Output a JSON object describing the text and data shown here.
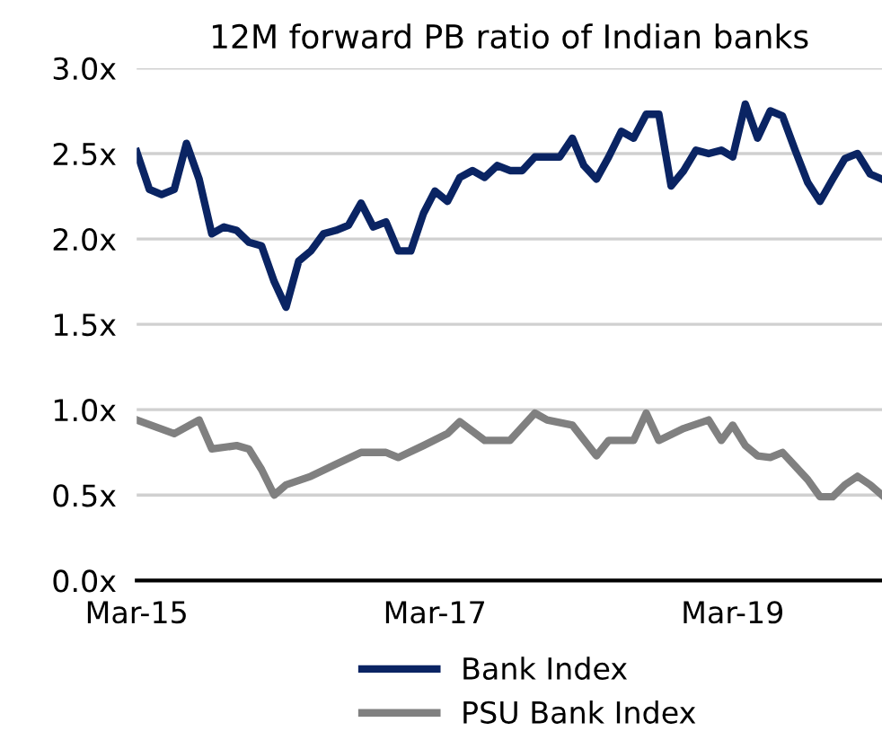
{
  "chart_data": {
    "type": "line",
    "title": "12M forward PB ratio of Indian banks",
    "series": [
      {
        "name": "Bank Index",
        "color": "#0a2463",
        "x": [
          "2015-03",
          "2015-04",
          "2015-05",
          "2015-06",
          "2015-07",
          "2015-08",
          "2015-09",
          "2015-10",
          "2015-11",
          "2015-12",
          "2016-01",
          "2016-02",
          "2016-03",
          "2016-04",
          "2016-05",
          "2016-06",
          "2016-07",
          "2016-08",
          "2016-09",
          "2016-10",
          "2016-11",
          "2016-12",
          "2017-01",
          "2017-02",
          "2017-03",
          "2017-04",
          "2017-05",
          "2017-06",
          "2017-07",
          "2017-08",
          "2017-09",
          "2017-10",
          "2017-11",
          "2017-12",
          "2018-01",
          "2018-02",
          "2018-03",
          "2018-04",
          "2018-05",
          "2018-06",
          "2018-07",
          "2018-08",
          "2018-09",
          "2018-10",
          "2018-11",
          "2018-12",
          "2019-01",
          "2019-02",
          "2019-03",
          "2019-04",
          "2019-05",
          "2019-06",
          "2019-07",
          "2019-08",
          "2019-09",
          "2019-10",
          "2019-11",
          "2019-12",
          "2020-01",
          "2020-02",
          "2020-03"
        ],
        "values": [
          2.51,
          2.29,
          2.26,
          2.29,
          2.56,
          2.35,
          2.03,
          2.07,
          2.05,
          1.98,
          1.96,
          1.75,
          1.6,
          1.87,
          1.93,
          2.03,
          2.05,
          2.08,
          2.21,
          2.07,
          2.1,
          1.93,
          1.93,
          2.15,
          2.28,
          2.22,
          2.36,
          2.4,
          2.36,
          2.43,
          2.4,
          2.4,
          2.48,
          2.48,
          2.48,
          2.59,
          2.43,
          2.35,
          2.48,
          2.63,
          2.59,
          2.73,
          2.73,
          2.31,
          2.4,
          2.52,
          2.5,
          2.52,
          2.48,
          2.79,
          2.59,
          2.75,
          2.72,
          2.52,
          2.33,
          2.22,
          2.35,
          2.47,
          2.5,
          2.38,
          2.35
        ]
      },
      {
        "name": "PSU Bank Index",
        "color": "#808080",
        "x": [
          "2015-03",
          "2015-06",
          "2015-08",
          "2015-09",
          "2015-11",
          "2015-12",
          "2016-01",
          "2016-02",
          "2016-03",
          "2016-05",
          "2016-07",
          "2016-09",
          "2016-11",
          "2016-12",
          "2017-02",
          "2017-04",
          "2017-05",
          "2017-07",
          "2017-09",
          "2017-11",
          "2017-12",
          "2018-02",
          "2018-04",
          "2018-05",
          "2018-07",
          "2018-08",
          "2018-09",
          "2018-11",
          "2019-01",
          "2019-02",
          "2019-03",
          "2019-04",
          "2019-05",
          "2019-06",
          "2019-07",
          "2019-09",
          "2019-10",
          "2019-11",
          "2019-12",
          "2020-01",
          "2020-02",
          "2020-03"
        ],
        "values": [
          0.94,
          0.86,
          0.94,
          0.77,
          0.79,
          0.77,
          0.65,
          0.5,
          0.56,
          0.61,
          0.68,
          0.75,
          0.75,
          0.72,
          0.79,
          0.86,
          0.93,
          0.82,
          0.82,
          0.98,
          0.94,
          0.91,
          0.73,
          0.82,
          0.82,
          0.98,
          0.82,
          0.89,
          0.94,
          0.82,
          0.91,
          0.79,
          0.73,
          0.72,
          0.75,
          0.59,
          0.49,
          0.49,
          0.56,
          0.61,
          0.56,
          0.5
        ]
      }
    ],
    "xlim": [
      "2015-03",
      "2020-03"
    ],
    "xticks": [
      {
        "value": "2015-03",
        "label": "Mar-15"
      },
      {
        "value": "2017-03",
        "label": "Mar-17"
      },
      {
        "value": "2019-03",
        "label": "Mar-19"
      }
    ],
    "ylim": [
      0,
      3
    ],
    "yticks": [
      {
        "value": 0,
        "label": "0.0x"
      },
      {
        "value": 0.5,
        "label": "0.5x"
      },
      {
        "value": 1.0,
        "label": "1.0x"
      },
      {
        "value": 1.5,
        "label": "1.5x"
      },
      {
        "value": 2.0,
        "label": "2.0x"
      },
      {
        "value": 2.5,
        "label": "2.5x"
      },
      {
        "value": 3.0,
        "label": "3.0x"
      }
    ],
    "grid": "y",
    "legend": "bottom",
    "line_style": "solid",
    "marker": "none"
  }
}
